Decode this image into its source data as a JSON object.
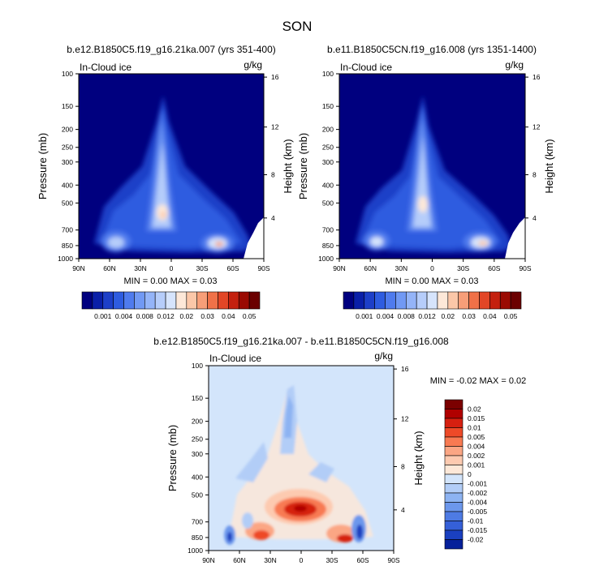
{
  "chart_data": {
    "type": "heatmap",
    "title": "SON",
    "y_pressure_ticks": [
      "100",
      "150",
      "200",
      "250",
      "300",
      "400",
      "500",
      "700",
      "850",
      "1000"
    ],
    "y_height_ticks": [
      "16",
      "12",
      "8",
      "4"
    ],
    "x_ticks": [
      "90N",
      "60N",
      "30N",
      "0",
      "30S",
      "60S",
      "90S"
    ],
    "panels": [
      {
        "id": "case1",
        "subtitle": "b.e12.B1850C5.f19_g16.21ka.007 (yrs 351-400)",
        "variable": "In-Cloud ice",
        "units": "g/kg",
        "ylabel": "Pressure (mb)",
        "y2label": "Height (km)",
        "stats": "MIN =   0.00   MAX =   0.03",
        "colorbar_labels": [
          "0.001",
          "0.004",
          "0.008",
          "0.012",
          "0.02",
          "0.03",
          "0.04",
          "0.05"
        ]
      },
      {
        "id": "case2",
        "subtitle": "b.e11.B1850C5CN.f19_g16.008 (yrs 1351-1400)",
        "variable": "In-Cloud ice",
        "units": "g/kg",
        "ylabel": "Pressure (mb)",
        "y2label": "Height (km)",
        "stats": "MIN =   0.00   MAX =   0.03",
        "colorbar_labels": [
          "0.001",
          "0.004",
          "0.008",
          "0.012",
          "0.02",
          "0.03",
          "0.04",
          "0.05"
        ]
      },
      {
        "id": "diff",
        "subtitle": "b.e12.B1850C5.f19_g16.21ka.007 - b.e11.B1850C5CN.f19_g16.008",
        "variable": "In-Cloud ice",
        "units": "g/kg",
        "ylabel": "Pressure (mb)",
        "y2label": "Height (km)",
        "stats": "MIN =  -0.02   MAX =   0.02",
        "colorbar_labels": [
          "0.02",
          "0.015",
          "0.01",
          "0.005",
          "0.004",
          "0.002",
          "0.001",
          "0",
          "-0.001",
          "-0.002",
          "-0.004",
          "-0.005",
          "-0.01",
          "-0.015",
          "-0.02"
        ]
      }
    ],
    "colors": {
      "abs_scale": [
        "#00007f",
        "#0a1fa8",
        "#1d3fc8",
        "#2e5ce0",
        "#4f7bee",
        "#7199f4",
        "#94b4f8",
        "#b6cdfa",
        "#d6e4fc",
        "#fde8d8",
        "#fbc7a8",
        "#f79e78",
        "#f07148",
        "#e24626",
        "#c4200e",
        "#9a0a02",
        "#6b0000"
      ],
      "diff_scale": [
        "#7b0000",
        "#b00000",
        "#d62010",
        "#ee4a28",
        "#f87a52",
        "#fba684",
        "#fdcab0",
        "#fde8d8",
        "#d3e5fb",
        "#b2cdf7",
        "#8db3f2",
        "#6c97ec",
        "#4e7be4",
        "#3560d8",
        "#1a40c0",
        "#06209a"
      ]
    }
  }
}
